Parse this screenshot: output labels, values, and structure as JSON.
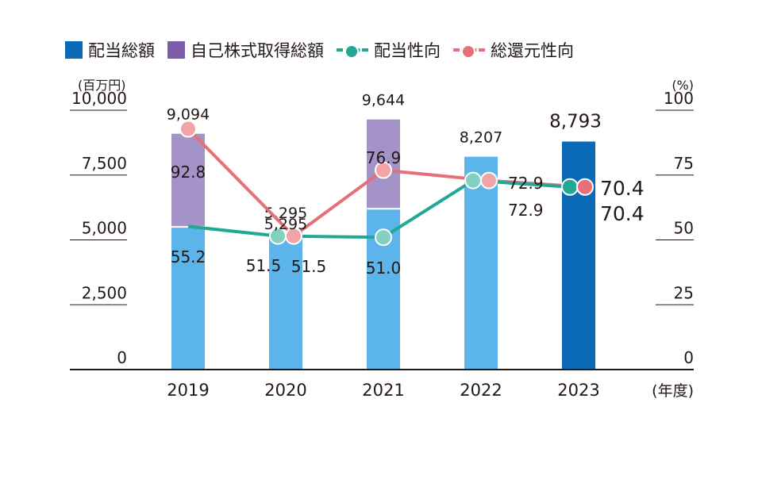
{
  "legend": {
    "dividend": "配当総額",
    "buyback": "自己株式取得総額",
    "payout": "配当性向",
    "total_return": "総還元性向"
  },
  "colors": {
    "dividend_bar": "#5cb5ea",
    "dividend_bar_latest": "#0b6ab8",
    "dividend_legend": "#0b6ab8",
    "buyback_bar": "#a393c6",
    "buyback_legend": "#7c5ca6",
    "payout_line": "#1fa995",
    "payout_dot": "#82d0c2",
    "payout_dot_latest": "#1fa995",
    "total_return_line": "#e76f7a",
    "total_return_dot": "#f2a4a9",
    "total_return_dot_latest": "#e76f7a",
    "axis": "#231815"
  },
  "chart_data": {
    "type": "bar+line",
    "categories": [
      "2019",
      "2020",
      "2021",
      "2022",
      "2023"
    ],
    "x_unit_label": "(年度)",
    "y_left": {
      "unit_label": "(百万円)",
      "ticks": [
        "10,000",
        "7,500",
        "5,000",
        "2,500",
        "0"
      ],
      "tick_values": [
        10000,
        7500,
        5000,
        2500,
        0
      ],
      "range": [
        0,
        10000
      ]
    },
    "y_right": {
      "unit_label": "(%)",
      "ticks": [
        "100",
        "75",
        "50",
        "25",
        "0"
      ],
      "tick_values": [
        100,
        75,
        50,
        25,
        0
      ],
      "range": [
        0,
        100
      ]
    },
    "series": [
      {
        "name": "配当総額",
        "type": "stacked-bar",
        "values": [
          5500,
          5295,
          6200,
          8207,
          8793
        ]
      },
      {
        "name": "自己株式取得総額",
        "type": "stacked-bar",
        "values": [
          3594,
          0,
          3444,
          0,
          0
        ]
      },
      {
        "name": "配当性向",
        "type": "line",
        "axis": "right",
        "values": [
          55.2,
          51.5,
          51.0,
          72.9,
          70.4
        ]
      },
      {
        "name": "総還元性向",
        "type": "line",
        "axis": "right",
        "values": [
          92.8,
          51.5,
          76.9,
          72.9,
          70.4
        ]
      }
    ],
    "bar_total_labels": [
      "9,094",
      "5,295",
      "9,644",
      "8,207",
      "8,793"
    ],
    "payout_labels": [
      "55.2",
      "51.5",
      "51.0",
      "72.9",
      "70.4"
    ],
    "total_return_labels": [
      "92.8",
      "51.5",
      "76.9",
      "72.9",
      "70.4"
    ]
  }
}
